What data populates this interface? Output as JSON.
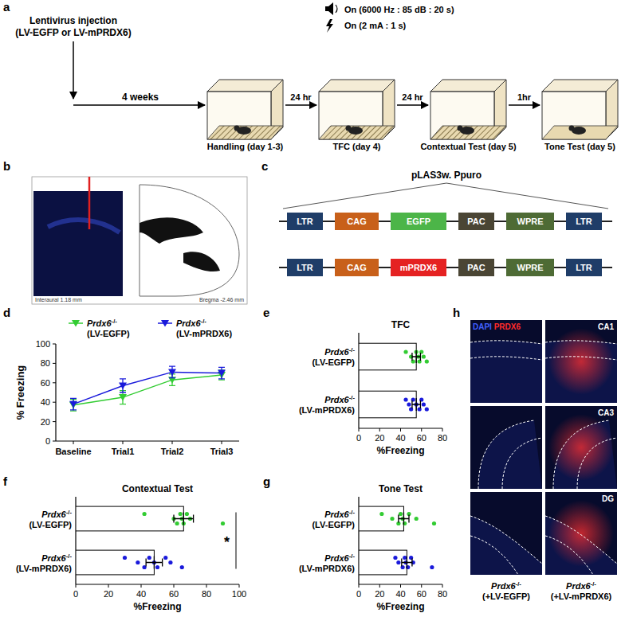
{
  "figure": {
    "a": {
      "label": "a",
      "injection": [
        "Lentivirus injection",
        "(LV-EGFP or LV-mPRDX6)"
      ],
      "stimuli": [
        "On (6000 Hz : 85 dB : 20 s)",
        "On (2 mA : 1 s)"
      ],
      "intervals": [
        "4 weeks",
        "24 hr",
        "24 hr",
        "1hr"
      ],
      "stages": [
        {
          "label": "Handling (day 1-3)",
          "hatched": true
        },
        {
          "label": "TFC (day 4)",
          "hatched": true
        },
        {
          "label": "Contextual Test (day 5)",
          "hatched": true
        },
        {
          "label": "Tone Test (day 5)",
          "hatched": false
        }
      ]
    },
    "b": {
      "label": "b",
      "atlas_texts": [
        "Interaural 1.18 mm",
        "Bregma -2.46 mm"
      ]
    },
    "c": {
      "label": "c",
      "title": "pLAS3w. Ppuro",
      "constructs": [
        [
          {
            "label": "LTR",
            "color": "#1f3d68"
          },
          {
            "label": "CAG",
            "color": "#c8601a"
          },
          {
            "label": "EGFP",
            "color": "#4cb548"
          },
          {
            "label": "PAC",
            "color": "#4a4534"
          },
          {
            "label": "WPRE",
            "color": "#4e6b35"
          },
          {
            "label": "LTR",
            "color": "#1f3d68"
          }
        ],
        [
          {
            "label": "LTR",
            "color": "#1f3d68"
          },
          {
            "label": "CAG",
            "color": "#c8601a"
          },
          {
            "label": "mPRDX6",
            "color": "#e52222"
          },
          {
            "label": "PAC",
            "color": "#4a4534"
          },
          {
            "label": "WPRE",
            "color": "#4e6b35"
          },
          {
            "label": "LTR",
            "color": "#1f3d68"
          }
        ]
      ]
    },
    "h": {
      "label": "h",
      "stain": [
        {
          "label": "DAPI",
          "color": "#4060ff"
        },
        {
          "label": "PRDX6",
          "color": "#ff2a2a"
        }
      ],
      "regions": [
        "CA1",
        "CA3",
        "DG"
      ],
      "columns": [
        "Prdx6-/- (+LV-EGFP)",
        "Prdx6-/- (+LV-mPRDX6)"
      ]
    }
  },
  "chart_data": [
    {
      "panel": "d",
      "type": "line",
      "y_label": "% Freezing",
      "categories": [
        "Baseline",
        "Trial1",
        "Trial2",
        "Trial3"
      ],
      "ylim": [
        0,
        100
      ],
      "yticks": [
        0,
        20,
        40,
        60,
        80,
        100
      ],
      "legend": "top",
      "series": [
        {
          "name": "Prdx6-/- (LV-EGFP)",
          "color": "#33cc33",
          "marker": "triangle-down",
          "values": [
            37,
            45,
            63,
            68
          ],
          "errors": [
            6,
            7,
            6,
            5
          ]
        },
        {
          "name": "Prdx6-/- (LV-mPRDX6)",
          "color": "#1a1adb",
          "marker": "triangle-down",
          "values": [
            38,
            57,
            71,
            70
          ],
          "errors": [
            6,
            7,
            6,
            6
          ]
        }
      ]
    },
    {
      "panel": "e",
      "type": "bar",
      "orientation": "horizontal",
      "title": "TFC",
      "x_label": "%Freezing",
      "categories": [
        "Prdx6-/- (LV-EGFP)",
        "Prdx6-/- (LV-mPRDX6)"
      ],
      "values": [
        55,
        55
      ],
      "errors": [
        4,
        4
      ],
      "colors": [
        "#33cc33",
        "#1a1adb"
      ],
      "points": [
        [
          45,
          50,
          52,
          55,
          57,
          58,
          60,
          62,
          65
        ],
        [
          45,
          48,
          50,
          52,
          55,
          58,
          60,
          62,
          65
        ]
      ],
      "xlim": [
        0,
        80
      ],
      "xticks": [
        0,
        20,
        40,
        60,
        80
      ]
    },
    {
      "panel": "f",
      "type": "bar",
      "orientation": "horizontal",
      "title": "Contextual Test",
      "x_label": "%Freezing",
      "categories": [
        "Prdx6-/- (LV-EGFP)",
        "Prdx6-/- (LV-mPRDX6)"
      ],
      "values": [
        66,
        48
      ],
      "errors": [
        6,
        5
      ],
      "colors": [
        "#33cc33",
        "#1a1adb"
      ],
      "points": [
        [
          42,
          60,
          62,
          64,
          65,
          66,
          68,
          70,
          90
        ],
        [
          30,
          38,
          42,
          45,
          48,
          50,
          55,
          58,
          65
        ]
      ],
      "xlim": [
        0,
        100
      ],
      "xticks": [
        0,
        20,
        40,
        60,
        80,
        100
      ],
      "annotation": "*"
    },
    {
      "panel": "g",
      "type": "bar",
      "orientation": "horizontal",
      "title": "Tone Test",
      "x_label": "%Freezing",
      "categories": [
        "Prdx6-/- (LV-EGFP)",
        "Prdx6-/- (LV-mPRDX6)"
      ],
      "values": [
        43,
        46
      ],
      "errors": [
        5,
        5
      ],
      "colors": [
        "#33cc33",
        "#1a1adb"
      ],
      "points": [
        [
          22,
          32,
          38,
          40,
          42,
          44,
          48,
          55,
          72
        ],
        [
          35,
          38,
          42,
          44,
          45,
          47,
          50,
          52,
          70
        ]
      ],
      "xlim": [
        0,
        80
      ],
      "xticks": [
        0,
        20,
        40,
        60,
        80
      ]
    }
  ]
}
